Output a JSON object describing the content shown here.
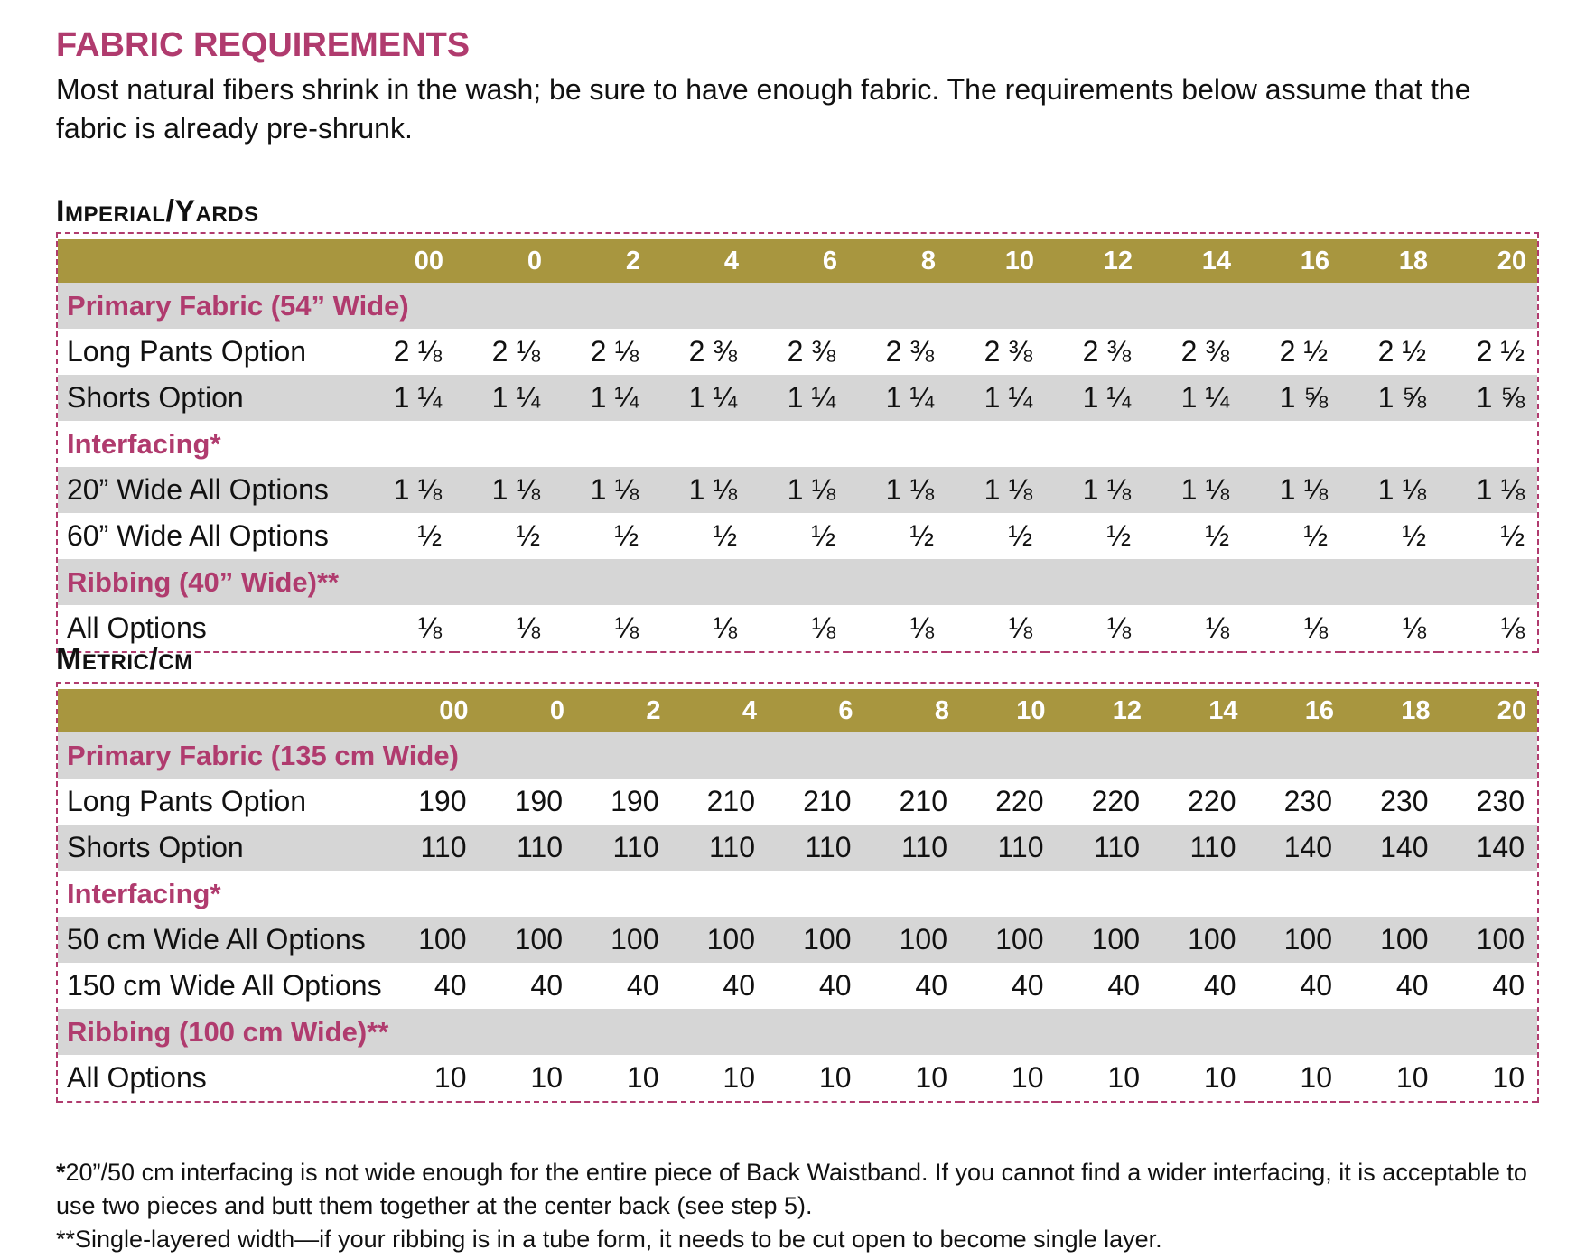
{
  "title": "FABRIC REQUIREMENTS",
  "intro": "Most natural fibers shrink in the wash; be sure to have enough fabric. The requirements below assume that the fabric is already pre-shrunk.",
  "sizes": [
    "00",
    "0",
    "2",
    "4",
    "6",
    "8",
    "10",
    "12",
    "14",
    "16",
    "18",
    "20"
  ],
  "imperial": {
    "heading": "Imperial/Yards",
    "groups": [
      {
        "name": "Primary Fabric (54” Wide)",
        "rows": [
          {
            "label": "Long Pants Option",
            "values": [
              "2 ⅛",
              "2 ⅛",
              "2 ⅛",
              "2 ⅜",
              "2 ⅜",
              "2 ⅜",
              "2 ⅜",
              "2 ⅜",
              "2 ⅜",
              "2 ½",
              "2 ½",
              "2 ½"
            ]
          },
          {
            "label": "Shorts Option",
            "values": [
              "1 ¼",
              "1 ¼",
              "1 ¼",
              "1 ¼",
              "1 ¼",
              "1 ¼",
              "1 ¼",
              "1 ¼",
              "1 ¼",
              "1 ⅝",
              "1 ⅝",
              "1 ⅝"
            ]
          }
        ]
      },
      {
        "name": "Interfacing*",
        "rows": [
          {
            "label": "20” Wide All Options",
            "values": [
              "1 ⅛",
              "1 ⅛",
              "1 ⅛",
              "1 ⅛",
              "1 ⅛",
              "1 ⅛",
              "1 ⅛",
              "1 ⅛",
              "1 ⅛",
              "1 ⅛",
              "1 ⅛",
              "1 ⅛"
            ]
          },
          {
            "label": "60” Wide All Options",
            "values": [
              "½",
              "½",
              "½",
              "½",
              "½",
              "½",
              "½",
              "½",
              "½",
              "½",
              "½",
              "½"
            ]
          }
        ]
      },
      {
        "name": "Ribbing (40” Wide)**",
        "rows": [
          {
            "label": "All Options",
            "values": [
              "⅛",
              "⅛",
              "⅛",
              "⅛",
              "⅛",
              "⅛",
              "⅛",
              "⅛",
              "⅛",
              "⅛",
              "⅛",
              "⅛"
            ]
          }
        ]
      }
    ]
  },
  "metric": {
    "heading": "Metric/cm",
    "groups": [
      {
        "name": "Primary Fabric (135 cm Wide)",
        "rows": [
          {
            "label": "Long Pants Option",
            "values": [
              "190",
              "190",
              "190",
              "210",
              "210",
              "210",
              "220",
              "220",
              "220",
              "230",
              "230",
              "230"
            ]
          },
          {
            "label": "Shorts Option",
            "values": [
              "110",
              "110",
              "110",
              "110",
              "110",
              "110",
              "110",
              "110",
              "110",
              "140",
              "140",
              "140"
            ]
          }
        ]
      },
      {
        "name": "Interfacing*",
        "rows": [
          {
            "label": "50 cm Wide All Options",
            "values": [
              "100",
              "100",
              "100",
              "100",
              "100",
              "100",
              "100",
              "100",
              "100",
              "100",
              "100",
              "100"
            ]
          },
          {
            "label": "150 cm Wide All Options",
            "values": [
              "40",
              "40",
              "40",
              "40",
              "40",
              "40",
              "40",
              "40",
              "40",
              "40",
              "40",
              "40"
            ]
          }
        ]
      },
      {
        "name": "Ribbing (100 cm Wide)**",
        "rows": [
          {
            "label": "All Options",
            "values": [
              "10",
              "10",
              "10",
              "10",
              "10",
              "10",
              "10",
              "10",
              "10",
              "10",
              "10",
              "10"
            ]
          }
        ]
      }
    ]
  },
  "notes": {
    "note1_star": "*",
    "note1": "20”/50 cm interfacing is not wide enough for the entire piece of Back Waistband. If you cannot find a wider interfacing, it is acceptable to use two pieces and butt them together at the center back (see step 5).",
    "note2": "**Single-layered width—if your ribbing is in a tube form, it needs to be cut open to become single layer."
  },
  "colors": {
    "accent": "#b03b6e",
    "header_bg": "#a8963f",
    "shade": "#d6d6d6"
  }
}
